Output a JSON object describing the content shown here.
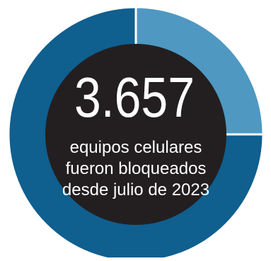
{
  "colors": {
    "background": "#ffffff",
    "main_segment": "#0f5f8f",
    "secondary_segment": "#4f98c2",
    "center_disc": "#231f20",
    "text": "#ffffff"
  },
  "chart_data": {
    "type": "pie",
    "style": "donut",
    "slices": [
      {
        "value": 75
      },
      {
        "value": 25
      }
    ],
    "center": {
      "number": "3.657",
      "line1": "equipos celulares",
      "line2": "fueron bloqueados",
      "line3": "desde julio de 2023"
    }
  }
}
